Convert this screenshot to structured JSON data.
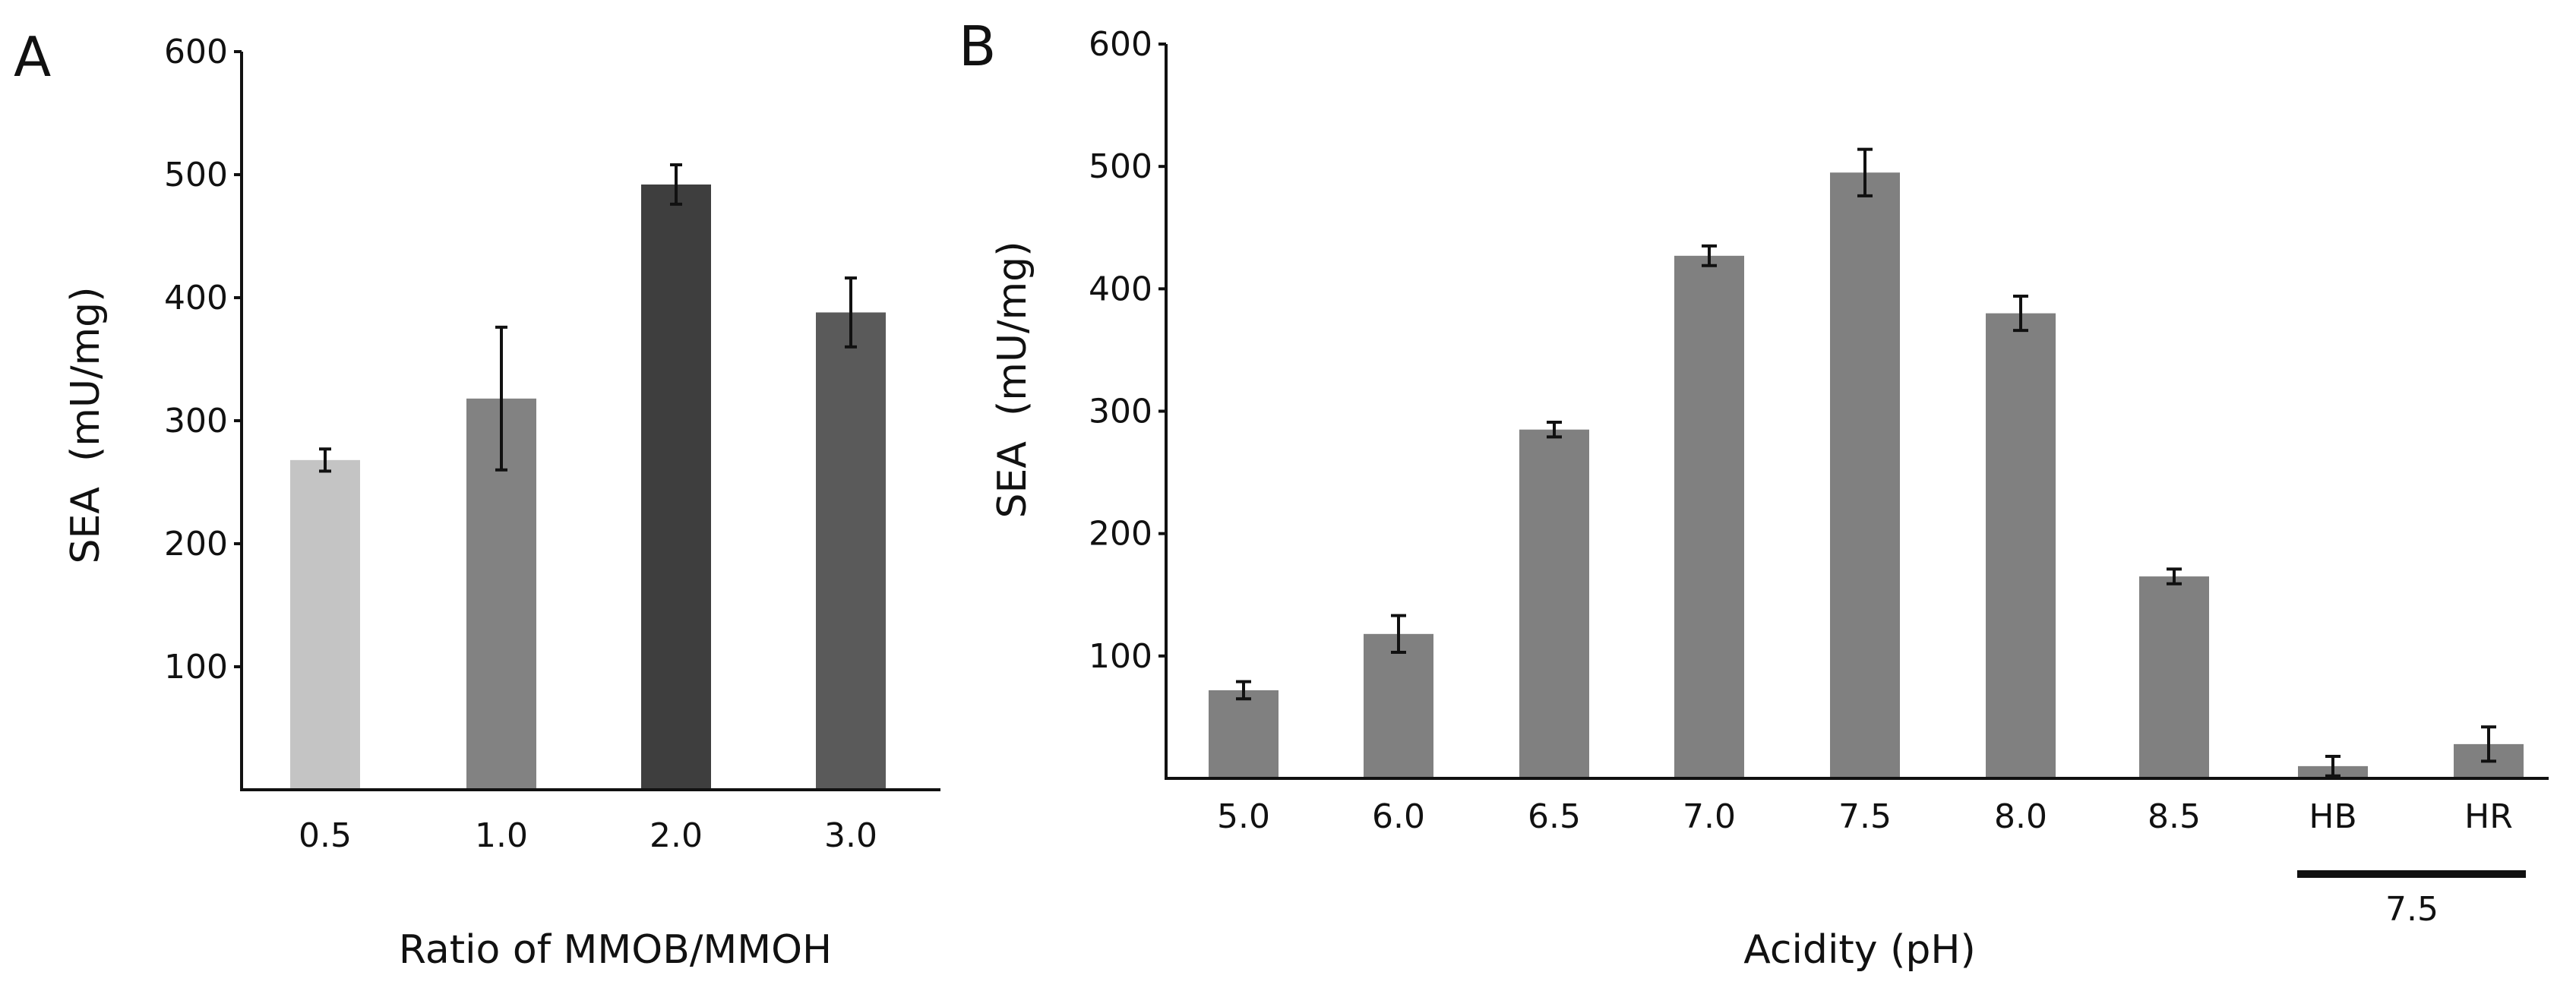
{
  "chart_data": [
    {
      "panel": "A",
      "type": "bar",
      "title": "",
      "xlabel": "Ratio of MMOB/MMOH",
      "ylabel": "SEA  (mU/mg)",
      "ylim": [
        0,
        600
      ],
      "yticks": [
        100,
        200,
        300,
        400,
        500,
        600
      ],
      "grid": false,
      "categories": [
        "0.5",
        "1.0",
        "2.0",
        "3.0"
      ],
      "values": [
        268,
        318,
        492,
        388
      ],
      "errors": [
        9,
        58,
        16,
        28
      ],
      "colors": [
        "#c4c4c4",
        "#828282",
        "#3e3e3e",
        "#5a5a5a"
      ]
    },
    {
      "panel": "B",
      "type": "bar",
      "title": "",
      "xlabel": "Acidity (pH)",
      "ylabel": "SEA  (mU/mg)",
      "ylim": [
        0,
        600
      ],
      "yticks": [
        100,
        200,
        300,
        400,
        500,
        600
      ],
      "grid": false,
      "categories": [
        "5.0",
        "6.0",
        "6.5",
        "7.0",
        "7.5",
        "8.0",
        "8.5",
        "HB",
        "HR"
      ],
      "values": [
        72,
        118,
        285,
        427,
        495,
        380,
        165,
        10,
        28
      ],
      "errors": [
        7,
        15,
        6,
        8,
        19,
        14,
        6,
        8,
        14
      ],
      "colors": [
        "#808080",
        "#808080",
        "#808080",
        "#808080",
        "#808080",
        "#808080",
        "#808080",
        "#808080",
        "#808080"
      ],
      "group_label": "7.5"
    }
  ]
}
